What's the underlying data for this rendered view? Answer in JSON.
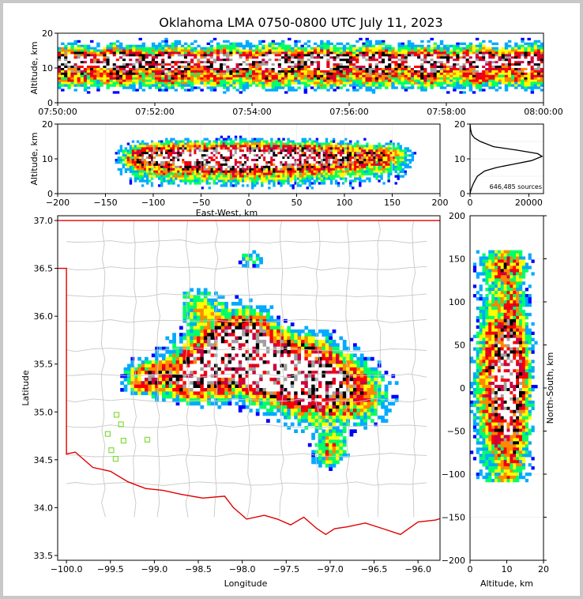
{
  "title": "Oklahoma LMA 0750-0800 UTC July 11, 2023",
  "colors": {
    "border": "#e00000",
    "county": "#c8c8c8",
    "station": "#7fdc3a",
    "axis": "#000000",
    "density_ramp": [
      "#0000ff",
      "#00aaff",
      "#00ff66",
      "#ffff00",
      "#ff8800",
      "#ff0000",
      "#cc0040",
      "#000000",
      "#a0a0a0",
      "#ffffff"
    ]
  },
  "chart_data": [
    {
      "id": "time_height",
      "type": "heatmap",
      "xlabel": "",
      "ylabel": "Altitude, km",
      "x_tick_labels": [
        "07:50:00",
        "07:52:00",
        "07:54:00",
        "07:56:00",
        "07:58:00",
        "08:00:00"
      ],
      "x_range_minutes": [
        0,
        10
      ],
      "ylim": [
        0,
        20
      ],
      "y_ticks": [
        0,
        10,
        20
      ],
      "peak_altitude_km": 12
    },
    {
      "id": "ew_altitude",
      "type": "heatmap",
      "xlabel": "East-West, km",
      "ylabel": "Altitude, km",
      "xlim": [
        -200,
        200
      ],
      "x_ticks": [
        -200,
        -150,
        -100,
        -50,
        0,
        50,
        100,
        150,
        200
      ],
      "ylim": [
        0,
        20
      ],
      "y_ticks": [
        0,
        10,
        20
      ],
      "extent_km": [
        -145,
        180
      ]
    },
    {
      "id": "altitude_histogram",
      "type": "line",
      "xlabel": "",
      "ylabel": "",
      "xlim": [
        0,
        25000
      ],
      "x_ticks": [
        0,
        20000
      ],
      "ylim": [
        0,
        20
      ],
      "y_ticks": [
        0,
        5,
        10,
        15,
        20
      ],
      "annotation": "646,485 sources",
      "x": [
        0,
        300,
        700,
        1200,
        2500,
        5000,
        9000,
        15000,
        21000,
        24500,
        23000,
        16000,
        8000,
        3500,
        1500,
        600,
        200,
        0
      ],
      "y": [
        0,
        1,
        2,
        3,
        5,
        6.5,
        7.5,
        8.5,
        9.5,
        10.7,
        11.5,
        12.5,
        13.5,
        15,
        16,
        17,
        18.5,
        20
      ]
    },
    {
      "id": "plan_view",
      "type": "heatmap",
      "xlabel": "Longitude",
      "ylabel": "Latitude",
      "xlim": [
        -100.1,
        -95.75
      ],
      "x_ticks": [
        -100.0,
        -99.5,
        -99.0,
        -98.5,
        -98.0,
        -97.5,
        -97.0,
        -96.5,
        -96.0
      ],
      "x_tick_labels": [
        "−100.0",
        "−99.5",
        "−99.0",
        "−98.5",
        "−98.0",
        "−97.5",
        "−97.0",
        "−96.5",
        "−96.0"
      ],
      "ylim": [
        33.45,
        37.05
      ],
      "y_ticks": [
        33.5,
        34.0,
        34.5,
        35.0,
        35.5,
        36.0,
        36.5,
        37.0
      ],
      "y_tick_labels": [
        "33.5",
        "34.0",
        "34.5",
        "35.0",
        "35.5",
        "36.0",
        "36.5",
        "37.0"
      ],
      "stations": [
        {
          "lon": -99.43,
          "lat": 34.97
        },
        {
          "lon": -99.38,
          "lat": 34.87
        },
        {
          "lon": -99.53,
          "lat": 34.77
        },
        {
          "lon": -99.35,
          "lat": 34.7
        },
        {
          "lon": -99.08,
          "lat": 34.71
        },
        {
          "lon": -99.49,
          "lat": 34.6
        },
        {
          "lon": -99.44,
          "lat": 34.51
        }
      ]
    },
    {
      "id": "ns_altitude",
      "type": "heatmap",
      "xlabel": "Altitude, km",
      "ylabel": "North-South, km",
      "xlim": [
        0,
        20
      ],
      "x_ticks": [
        0,
        10,
        20
      ],
      "ylim": [
        -200,
        200
      ],
      "y_ticks": [
        -200,
        -150,
        -100,
        -50,
        0,
        50,
        100,
        150,
        200
      ],
      "extent_km": [
        -110,
        160
      ]
    }
  ]
}
